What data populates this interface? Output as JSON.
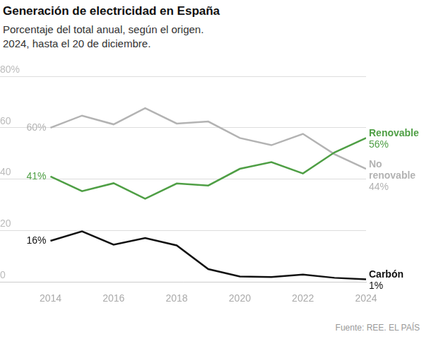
{
  "chart_data": {
    "type": "line",
    "title": "Generación de electricidad en España",
    "subtitle": [
      "Porcentaje del total anual, según el origen.",
      "2024, hasta el 20 de diciembre."
    ],
    "source": "Fuente: REE. EL PAÍS",
    "x": [
      2014,
      2015,
      2016,
      2017,
      2018,
      2019,
      2020,
      2021,
      2022,
      2023,
      2024
    ],
    "xlim": [
      2012.4,
      2024
    ],
    "xticks": [
      2014,
      2016,
      2018,
      2020,
      2022,
      2024
    ],
    "ylim": [
      0,
      80
    ],
    "yticks": [
      0,
      20,
      40,
      60,
      {
        "value": 80,
        "label": "80%"
      }
    ],
    "grid": "y",
    "data_labels": true,
    "series": [
      {
        "name": "Renovable",
        "color": "#4f9f45",
        "values": [
          41,
          35.3,
          38.4,
          32.4,
          38.3,
          37.5,
          44,
          46.6,
          42.2,
          50.4,
          56
        ],
        "value_labels": [
          "41%",
          null,
          null,
          null,
          null,
          null,
          null,
          null,
          null,
          null,
          "56%"
        ]
      },
      {
        "name": "No renovable",
        "color": "#b3b3b3",
        "values": [
          60,
          64.7,
          61.3,
          67.6,
          61.6,
          62.4,
          56,
          53.2,
          57.6,
          49.7,
          44
        ],
        "value_labels": [
          "60%",
          null,
          null,
          null,
          null,
          null,
          null,
          null,
          null,
          null,
          "44%"
        ]
      },
      {
        "name": "Carbón",
        "color": "#111111",
        "values": [
          16,
          19.7,
          14.5,
          17.1,
          14.2,
          5,
          2.1,
          1.9,
          2.9,
          1.6,
          1
        ],
        "value_labels": [
          "16%",
          null,
          null,
          null,
          null,
          null,
          null,
          null,
          null,
          null,
          "1%"
        ]
      }
    ]
  }
}
